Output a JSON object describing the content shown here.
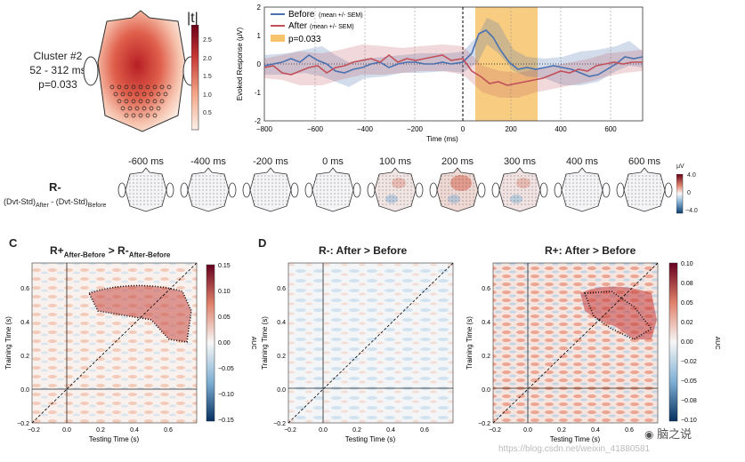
{
  "cluster": {
    "title": "Cluster #2",
    "time_range": "52 - 312 ms",
    "p_value": "p=0.033",
    "colorbar_label": "|t|",
    "colorbar_ticks": [
      "2.5",
      "2.0",
      "1.5",
      "1.0",
      "0.5"
    ]
  },
  "erp_plot": {
    "legend": {
      "before": "Before",
      "before_sub": "(mean +/- SEM)",
      "after": "After",
      "after_sub": "(mean +/- SEM)",
      "sig": "p=0.033"
    },
    "ylabel": "Evoked Response (μV)",
    "xlabel": "Time (ms)",
    "y_ticks": [
      "2",
      "1",
      "0",
      "-1",
      "-2"
    ],
    "x_ticks": [
      "−800",
      "−600",
      "−400",
      "−200",
      "0",
      "200",
      "400",
      "600"
    ],
    "colors": {
      "before": "#4a72b0",
      "after": "#c0505a",
      "sig": "#f7c46c"
    }
  },
  "topo_row": {
    "row_label": "R-",
    "formula_a": "(Dvt-Std)",
    "formula_a_sub": "After",
    "formula_mid": " - (Dvt-Std)",
    "formula_b_sub": "Before",
    "times": [
      "-600 ms",
      "-400 ms",
      "-200 ms",
      "0 ms",
      "100 ms",
      "200 ms",
      "300 ms",
      "400 ms",
      "600 ms"
    ],
    "cb_unit": "μV",
    "cb_max": "4.0",
    "cb_zero": "0",
    "cb_min": "−4.0"
  },
  "panel_c": {
    "letter": "C",
    "t1": "R+",
    "t1_sub": "After-Before",
    "t_mid": " > R-",
    "t2_sub": "After-Before",
    "xlabel": "Testing Time (s)",
    "ylabel": "Training Time (s)",
    "x_ticks": [
      "−0.2",
      "0.0",
      "0.2",
      "0.4",
      "0.6"
    ],
    "y_ticks": [
      "0.6",
      "0.4",
      "0.2",
      "0.0",
      "−0.2"
    ],
    "cb_label": "AUC",
    "cb_ticks": [
      "0.15",
      "0.10",
      "0.05",
      "0.00",
      "−0.05",
      "−0.10",
      "−0.15"
    ]
  },
  "panel_d": {
    "letter": "D",
    "left_title": "R-: After > Before",
    "right_title": "R+: After > Before",
    "xlabel": "Testing Time (s)",
    "ylabel": "Training Time (s)",
    "x_ticks": [
      "−0.2",
      "0.0",
      "0.2",
      "0.4",
      "0.6"
    ],
    "y_ticks": [
      "0.6",
      "0.4",
      "0.2",
      "0.0",
      "−0.2"
    ],
    "cb_label": "AUC",
    "cb_ticks": [
      "0.10",
      "0.08",
      "0.05",
      "0.02",
      "0.00",
      "−0.02",
      "−0.05",
      "−0.08",
      "−0.10"
    ]
  },
  "watermark": {
    "brand": "脑之说",
    "url": "https://blog.csdn.net/weixin_41880581"
  }
}
